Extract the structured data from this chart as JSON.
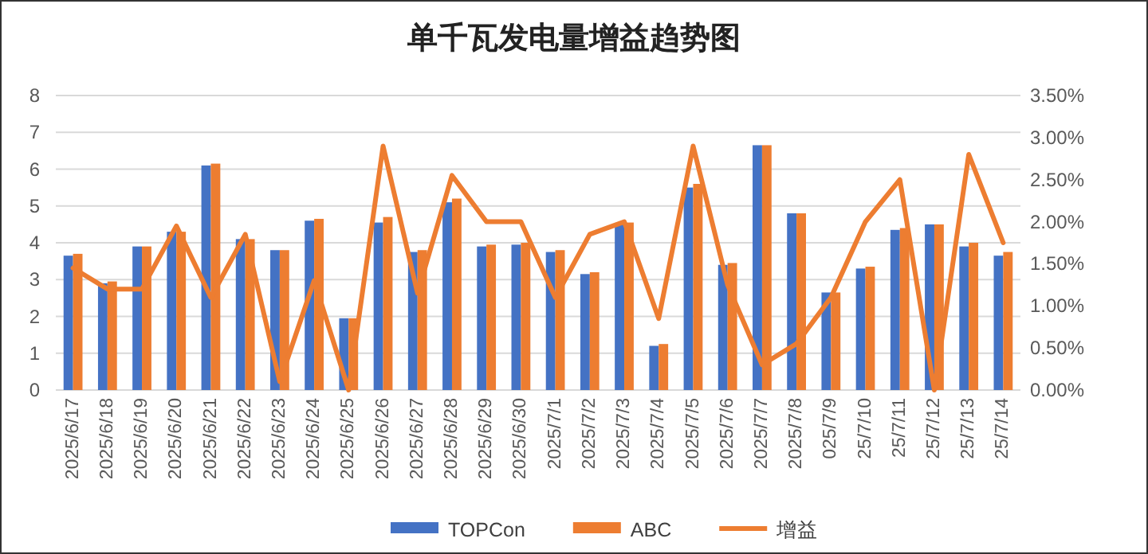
{
  "chart_data": {
    "type": "bar",
    "title": "单千瓦发电量增益趋势图",
    "categories": [
      "2025/6/17",
      "2025/6/18",
      "2025/6/19",
      "2025/6/20",
      "2025/6/21",
      "2025/6/22",
      "2025/6/23",
      "2025/6/24",
      "2025/6/25",
      "2025/6/26",
      "2025/6/27",
      "2025/6/28",
      "2025/6/29",
      "2025/6/30",
      "2025/7/1",
      "2025/7/2",
      "2025/7/3",
      "2025/7/4",
      "2025/7/5",
      "2025/7/6",
      "2025/7/7",
      "2025/7/8",
      "025/7/9",
      "25/7/10",
      "25/7/11",
      "25/7/12",
      "25/7/13",
      "25/7/14"
    ],
    "series": [
      {
        "name": "TOPCon",
        "color": "#4472c4",
        "values": [
          3.65,
          2.9,
          3.9,
          4.3,
          6.1,
          4.1,
          3.8,
          4.6,
          1.95,
          4.55,
          3.75,
          5.1,
          3.9,
          3.95,
          3.75,
          3.15,
          4.5,
          1.2,
          5.5,
          3.4,
          6.65,
          4.8,
          2.65,
          3.3,
          4.35,
          4.5,
          3.9,
          3.65
        ]
      },
      {
        "name": "ABC",
        "color": "#ed7d31",
        "values": [
          3.7,
          2.95,
          3.9,
          4.3,
          6.15,
          4.1,
          3.8,
          4.65,
          1.95,
          4.7,
          3.8,
          5.2,
          3.95,
          4.0,
          3.8,
          3.2,
          4.55,
          1.25,
          5.6,
          3.45,
          6.65,
          4.8,
          2.65,
          3.35,
          4.4,
          4.5,
          4.0,
          3.75
        ]
      },
      {
        "name": "增益",
        "type": "line",
        "axis": "y2",
        "color": "#ed7d31",
        "values": [
          1.45,
          1.2,
          1.2,
          1.95,
          1.1,
          1.85,
          0.1,
          1.3,
          0.0,
          2.9,
          1.15,
          2.55,
          2.0,
          2.0,
          1.1,
          1.85,
          2.0,
          0.85,
          2.9,
          1.25,
          0.3,
          0.55,
          1.1,
          2.0,
          2.5,
          0.0,
          2.8,
          1.75
        ]
      }
    ],
    "ylim": [
      0,
      8
    ],
    "yticks": [
      0,
      1,
      2,
      3,
      4,
      5,
      6,
      7,
      8
    ],
    "y2lim": [
      0,
      3.5
    ],
    "y2ticks": [
      {
        "value": 0,
        "label": "0.00%"
      },
      {
        "value": 0.5,
        "label": "0.50%"
      },
      {
        "value": 1,
        "label": "1.00%"
      },
      {
        "value": 1.5,
        "label": "1.50%"
      },
      {
        "value": 2,
        "label": "2.00%"
      },
      {
        "value": 2.5,
        "label": "2.50%"
      },
      {
        "value": 3,
        "label": "3.00%"
      },
      {
        "value": 3.5,
        "label": "3.50%"
      }
    ],
    "grid": "y",
    "legend": "bottom",
    "marker": "none"
  }
}
